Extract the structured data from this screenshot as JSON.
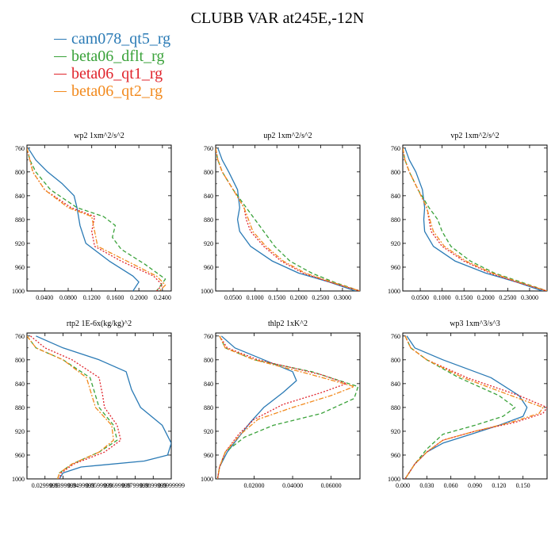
{
  "figure": {
    "title": "CLUBB VAR at245E,-12N",
    "legend": [
      {
        "label": "cam078_qt5_rg",
        "color": "#2a7ab5"
      },
      {
        "label": "beta06_dflt_rg",
        "color": "#3aa23a"
      },
      {
        "label": "beta06_qt1_rg",
        "color": "#e0242c"
      },
      {
        "label": "beta06_qt2_rg",
        "color": "#f28a1e"
      }
    ]
  },
  "chart_data": [
    {
      "type": "line",
      "title": "wp2  1xm^2/s^2",
      "ylim": [
        1000,
        755
      ],
      "yticks": [
        760,
        800,
        840,
        880,
        920,
        960,
        1000
      ],
      "xlim": [
        0.01,
        0.255
      ],
      "xticks": [
        0.04,
        0.08,
        0.12,
        0.16,
        0.2,
        0.24
      ],
      "xtick_labels": [
        "0.0400",
        "0.0800",
        "0.1200",
        "0.1600",
        "0.2000",
        "0.2400"
      ],
      "series": [
        {
          "name": "cam078_qt5_rg",
          "x": [
            0.012,
            0.025,
            0.045,
            0.07,
            0.09,
            0.095,
            0.1,
            0.11,
            0.15,
            0.19,
            0.2,
            0.19
          ],
          "y": [
            760,
            780,
            800,
            820,
            840,
            860,
            890,
            920,
            950,
            975,
            985,
            1000
          ]
        },
        {
          "name": "beta06_dflt_rg",
          "x": [
            0.01,
            0.015,
            0.025,
            0.05,
            0.095,
            0.14,
            0.16,
            0.155,
            0.17,
            0.21,
            0.245,
            0.23
          ],
          "y": [
            760,
            780,
            800,
            830,
            860,
            875,
            890,
            910,
            930,
            955,
            980,
            1000
          ]
        },
        {
          "name": "beta06_qt1_rg",
          "x": [
            0.01,
            0.015,
            0.02,
            0.04,
            0.085,
            0.125,
            0.12,
            0.125,
            0.17,
            0.225,
            0.24,
            0.23
          ],
          "y": [
            760,
            780,
            800,
            830,
            860,
            875,
            900,
            925,
            950,
            975,
            990,
            1000
          ]
        },
        {
          "name": "beta06_qt2_rg",
          "x": [
            0.01,
            0.015,
            0.02,
            0.04,
            0.08,
            0.12,
            0.125,
            0.13,
            0.18,
            0.23,
            0.245,
            0.235
          ],
          "y": [
            760,
            780,
            800,
            830,
            860,
            875,
            900,
            925,
            950,
            975,
            990,
            1000
          ]
        }
      ]
    },
    {
      "type": "line",
      "title": "up2  1xm^2/s^2",
      "ylim": [
        1000,
        755
      ],
      "yticks": [
        760,
        800,
        840,
        880,
        920,
        960,
        1000
      ],
      "xlim": [
        0.01,
        0.34
      ],
      "xticks": [
        0.05,
        0.1,
        0.15,
        0.2,
        0.25,
        0.3
      ],
      "xtick_labels": [
        "0.0500",
        "0.1000",
        "0.1500",
        "0.2000",
        "0.2500",
        "0.3000"
      ],
      "series": [
        {
          "name": "cam078_qt5_rg",
          "x": [
            0.015,
            0.025,
            0.04,
            0.06,
            0.065,
            0.06,
            0.065,
            0.09,
            0.14,
            0.2,
            0.27,
            0.33
          ],
          "y": [
            760,
            780,
            800,
            830,
            860,
            880,
            900,
            925,
            950,
            970,
            985,
            1000
          ]
        },
        {
          "name": "beta06_dflt_rg",
          "x": [
            0.01,
            0.015,
            0.025,
            0.05,
            0.08,
            0.1,
            0.12,
            0.145,
            0.18,
            0.23,
            0.28,
            0.34
          ],
          "y": [
            760,
            780,
            800,
            830,
            860,
            880,
            900,
            925,
            950,
            970,
            985,
            1000
          ]
        },
        {
          "name": "beta06_qt1_rg",
          "x": [
            0.01,
            0.015,
            0.025,
            0.05,
            0.075,
            0.08,
            0.09,
            0.12,
            0.16,
            0.21,
            0.27,
            0.34
          ],
          "y": [
            760,
            780,
            800,
            830,
            860,
            880,
            900,
            925,
            950,
            970,
            985,
            1000
          ]
        },
        {
          "name": "beta06_qt2_rg",
          "x": [
            0.01,
            0.015,
            0.025,
            0.05,
            0.075,
            0.085,
            0.095,
            0.125,
            0.165,
            0.215,
            0.275,
            0.34
          ],
          "y": [
            760,
            780,
            800,
            830,
            860,
            880,
            900,
            925,
            950,
            970,
            985,
            1000
          ]
        }
      ]
    },
    {
      "type": "line",
      "title": "vp2  1xm^2/s^2",
      "ylim": [
        1000,
        755
      ],
      "yticks": [
        760,
        800,
        840,
        880,
        920,
        960,
        1000
      ],
      "xlim": [
        0.01,
        0.34
      ],
      "xticks": [
        0.05,
        0.1,
        0.15,
        0.2,
        0.25,
        0.3
      ],
      "xtick_labels": [
        "0.0500",
        "0.1000",
        "0.1500",
        "0.2000",
        "0.2500",
        "0.3000"
      ],
      "series": [
        {
          "name": "cam078_qt5_rg",
          "x": [
            0.015,
            0.025,
            0.04,
            0.055,
            0.06,
            0.058,
            0.06,
            0.08,
            0.13,
            0.2,
            0.27,
            0.33
          ],
          "y": [
            760,
            780,
            800,
            830,
            860,
            880,
            900,
            925,
            950,
            970,
            985,
            1000
          ]
        },
        {
          "name": "beta06_dflt_rg",
          "x": [
            0.01,
            0.015,
            0.025,
            0.045,
            0.07,
            0.09,
            0.1,
            0.12,
            0.165,
            0.22,
            0.28,
            0.34
          ],
          "y": [
            760,
            780,
            800,
            830,
            860,
            880,
            900,
            925,
            950,
            970,
            985,
            1000
          ]
        },
        {
          "name": "beta06_qt1_rg",
          "x": [
            0.01,
            0.015,
            0.025,
            0.045,
            0.065,
            0.07,
            0.075,
            0.1,
            0.15,
            0.21,
            0.27,
            0.34
          ],
          "y": [
            760,
            780,
            800,
            830,
            860,
            880,
            900,
            925,
            950,
            970,
            985,
            1000
          ]
        },
        {
          "name": "beta06_qt2_rg",
          "x": [
            0.01,
            0.015,
            0.025,
            0.045,
            0.065,
            0.072,
            0.08,
            0.105,
            0.155,
            0.215,
            0.275,
            0.34
          ],
          "y": [
            760,
            780,
            800,
            830,
            860,
            880,
            900,
            925,
            950,
            970,
            985,
            1000
          ]
        }
      ]
    },
    {
      "type": "line",
      "title": "rtp2  1E-6x(kg/kg)^2",
      "ylim": [
        1000,
        755
      ],
      "yticks": [
        760,
        800,
        840,
        880,
        920,
        960,
        1000
      ],
      "xlim": [
        0.02,
        0.1
      ],
      "xticks": [
        0.03,
        0.04,
        0.05,
        0.06,
        0.07,
        0.08,
        0.09,
        0.1
      ],
      "xtick_labels": [
        "0.0299999",
        "0.0399999",
        "0.0499999",
        "0.0599999",
        "0.0699999",
        "0.0799999",
        "0.0899999",
        "0.0999999"
      ],
      "series": [
        {
          "name": "cam078_qt5_rg",
          "x": [
            0.025,
            0.04,
            0.06,
            0.075,
            0.078,
            0.083,
            0.095,
            0.1,
            0.098,
            0.085,
            0.05,
            0.04,
            0.038
          ],
          "y": [
            760,
            780,
            800,
            820,
            850,
            880,
            910,
            940,
            960,
            970,
            980,
            990,
            1000
          ]
        },
        {
          "name": "beta06_dflt_rg",
          "x": [
            0.02,
            0.025,
            0.04,
            0.055,
            0.058,
            0.06,
            0.068,
            0.07,
            0.06,
            0.045,
            0.038,
            0.037
          ],
          "y": [
            760,
            780,
            800,
            830,
            860,
            880,
            910,
            935,
            955,
            975,
            990,
            1000
          ]
        },
        {
          "name": "beta06_qt1_rg",
          "x": [
            0.022,
            0.03,
            0.045,
            0.06,
            0.062,
            0.063,
            0.07,
            0.072,
            0.063,
            0.046,
            0.039,
            0.038
          ],
          "y": [
            760,
            780,
            800,
            830,
            860,
            880,
            910,
            935,
            955,
            975,
            990,
            1000
          ]
        },
        {
          "name": "beta06_qt2_rg",
          "x": [
            0.02,
            0.025,
            0.04,
            0.053,
            0.056,
            0.058,
            0.067,
            0.068,
            0.06,
            0.045,
            0.038,
            0.037
          ],
          "y": [
            760,
            780,
            800,
            830,
            860,
            880,
            910,
            935,
            955,
            975,
            990,
            1000
          ]
        }
      ]
    },
    {
      "type": "line",
      "title": "thlp2  1xK^2",
      "ylim": [
        1000,
        755
      ],
      "yticks": [
        760,
        800,
        840,
        880,
        920,
        960,
        1000
      ],
      "xlim": [
        0.0,
        0.075
      ],
      "xticks": [
        0.02,
        0.04,
        0.06
      ],
      "xtick_labels": [
        "0.02000",
        "0.04000",
        "0.06000"
      ],
      "series": [
        {
          "name": "cam078_qt5_rg",
          "x": [
            0.003,
            0.01,
            0.025,
            0.04,
            0.042,
            0.035,
            0.025,
            0.018,
            0.012,
            0.006,
            0.002,
            0.001
          ],
          "y": [
            760,
            780,
            800,
            820,
            835,
            855,
            880,
            905,
            930,
            955,
            980,
            1000
          ]
        },
        {
          "name": "beta06_dflt_rg",
          "x": [
            0.002,
            0.005,
            0.02,
            0.05,
            0.074,
            0.072,
            0.055,
            0.03,
            0.015,
            0.005,
            0.002,
            0.001
          ],
          "y": [
            760,
            780,
            800,
            820,
            845,
            865,
            890,
            910,
            930,
            955,
            980,
            1000
          ]
        },
        {
          "name": "beta06_qt1_rg",
          "x": [
            0.002,
            0.006,
            0.022,
            0.055,
            0.068,
            0.055,
            0.035,
            0.02,
            0.012,
            0.005,
            0.002,
            0.001
          ],
          "y": [
            760,
            780,
            800,
            825,
            840,
            855,
            875,
            900,
            925,
            955,
            980,
            1000
          ]
        },
        {
          "name": "beta06_qt2_rg",
          "x": [
            0.002,
            0.005,
            0.02,
            0.05,
            0.072,
            0.06,
            0.04,
            0.022,
            0.013,
            0.005,
            0.002,
            0.001
          ],
          "y": [
            760,
            780,
            800,
            825,
            845,
            860,
            880,
            900,
            925,
            955,
            980,
            1000
          ]
        }
      ]
    },
    {
      "type": "line",
      "title": "wp3  1xm^3/s^3",
      "ylim": [
        1000,
        755
      ],
      "yticks": [
        760,
        800,
        840,
        880,
        920,
        960,
        1000
      ],
      "xlim": [
        0.0,
        0.18
      ],
      "xticks": [
        0.0,
        0.03,
        0.06,
        0.09,
        0.12,
        0.15
      ],
      "xtick_labels": [
        "0.000",
        "0.030",
        "0.060",
        "0.090",
        "0.120",
        "0.150"
      ],
      "series": [
        {
          "name": "cam078_qt5_rg",
          "x": [
            0.005,
            0.015,
            0.05,
            0.11,
            0.145,
            0.155,
            0.15,
            0.12,
            0.085,
            0.05,
            0.03,
            0.015,
            0.003
          ],
          "y": [
            760,
            780,
            800,
            830,
            860,
            880,
            895,
            910,
            925,
            940,
            955,
            975,
            1000
          ]
        },
        {
          "name": "beta06_dflt_rg",
          "x": [
            0.003,
            0.01,
            0.03,
            0.07,
            0.12,
            0.14,
            0.125,
            0.09,
            0.05,
            0.03,
            0.015,
            0.003
          ],
          "y": [
            760,
            780,
            800,
            830,
            860,
            880,
            895,
            910,
            925,
            950,
            975,
            1000
          ]
        },
        {
          "name": "beta06_qt1_rg",
          "x": [
            0.003,
            0.01,
            0.03,
            0.08,
            0.145,
            0.18,
            0.175,
            0.14,
            0.09,
            0.05,
            0.03,
            0.015,
            0.003
          ],
          "y": [
            760,
            780,
            800,
            830,
            860,
            880,
            890,
            905,
            920,
            935,
            955,
            975,
            1000
          ]
        },
        {
          "name": "beta06_qt2_rg",
          "x": [
            0.003,
            0.01,
            0.03,
            0.075,
            0.135,
            0.175,
            0.17,
            0.135,
            0.09,
            0.05,
            0.03,
            0.015,
            0.003
          ],
          "y": [
            760,
            780,
            800,
            830,
            860,
            880,
            890,
            905,
            920,
            935,
            955,
            975,
            1000
          ]
        }
      ]
    }
  ]
}
